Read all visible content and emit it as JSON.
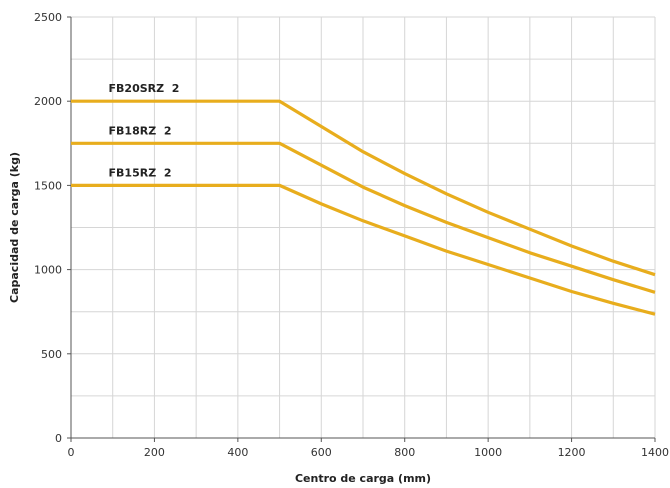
{
  "chart_data": {
    "type": "line",
    "title": "",
    "xlabel": "Centro de carga (mm)",
    "ylabel": "Capacidad de carga (kg)",
    "xlim": [
      0,
      1400
    ],
    "ylim": [
      0,
      2500
    ],
    "x_ticks": [
      0,
      200,
      400,
      600,
      800,
      1000,
      1200,
      1400
    ],
    "y_ticks": [
      0,
      500,
      1000,
      1500,
      2000,
      2500
    ],
    "grid": true,
    "legend": "inline labels above each line",
    "line_color": "#e8ad1d",
    "series": [
      {
        "name": "FB20SRZ  2",
        "x": [
          0,
          500,
          600,
          700,
          800,
          900,
          1000,
          1100,
          1200,
          1300,
          1400
        ],
        "y": [
          2000,
          2000,
          1850,
          1700,
          1570,
          1450,
          1340,
          1240,
          1140,
          1050,
          970
        ]
      },
      {
        "name": "FB18RZ  2",
        "x": [
          0,
          500,
          600,
          700,
          800,
          900,
          1000,
          1100,
          1200,
          1300,
          1400
        ],
        "y": [
          1750,
          1750,
          1620,
          1490,
          1380,
          1280,
          1190,
          1100,
          1020,
          940,
          865
        ]
      },
      {
        "name": "FB15RZ  2",
        "x": [
          0,
          500,
          600,
          700,
          800,
          900,
          1000,
          1100,
          1200,
          1300,
          1400
        ],
        "y": [
          1500,
          1500,
          1390,
          1290,
          1200,
          1110,
          1030,
          950,
          870,
          800,
          735
        ]
      }
    ]
  }
}
